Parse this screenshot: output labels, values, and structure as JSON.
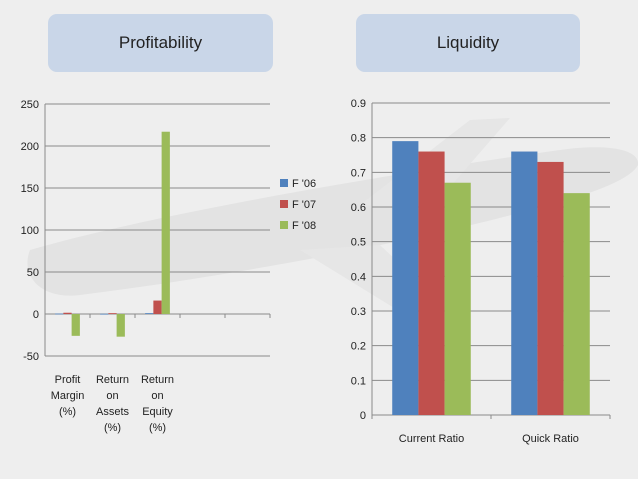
{
  "headers": {
    "left": "Profitability",
    "right": "Liquidity"
  },
  "colors": {
    "F06": "#4f81bd",
    "F07": "#c0504d",
    "F08": "#9bbb59"
  },
  "chart_data": [
    {
      "type": "bar",
      "title": "Profitability",
      "categories": [
        [
          "Profit",
          "Margin",
          "(%)"
        ],
        [
          "Return",
          "on",
          "Assets",
          "(%)"
        ],
        [
          "Return",
          "on",
          "Equity",
          "(%)"
        ]
      ],
      "series": [
        {
          "name": "F '06",
          "values": [
            0.5,
            0.3,
            1
          ]
        },
        {
          "name": "F '07",
          "values": [
            1.5,
            1,
            16
          ]
        },
        {
          "name": "F '08",
          "values": [
            -26,
            -27,
            217
          ]
        }
      ],
      "ylim": [
        -50,
        250
      ],
      "yticks": [
        -50,
        0,
        50,
        100,
        150,
        200,
        250
      ],
      "empty_slots": 2,
      "grid": true,
      "legend": "right"
    },
    {
      "type": "bar",
      "title": "Liquidity",
      "categories": [
        [
          "Current Ratio"
        ],
        [
          "Quick Ratio"
        ]
      ],
      "series": [
        {
          "name": "F '06",
          "values": [
            0.79,
            0.76
          ]
        },
        {
          "name": "F '07",
          "values": [
            0.76,
            0.73
          ]
        },
        {
          "name": "F '08",
          "values": [
            0.67,
            0.64
          ]
        }
      ],
      "ylim": [
        0,
        0.9
      ],
      "yticks": [
        0,
        0.1,
        0.2,
        0.3,
        0.4,
        0.5,
        0.6,
        0.7,
        0.8,
        0.9
      ],
      "grid": true
    }
  ]
}
